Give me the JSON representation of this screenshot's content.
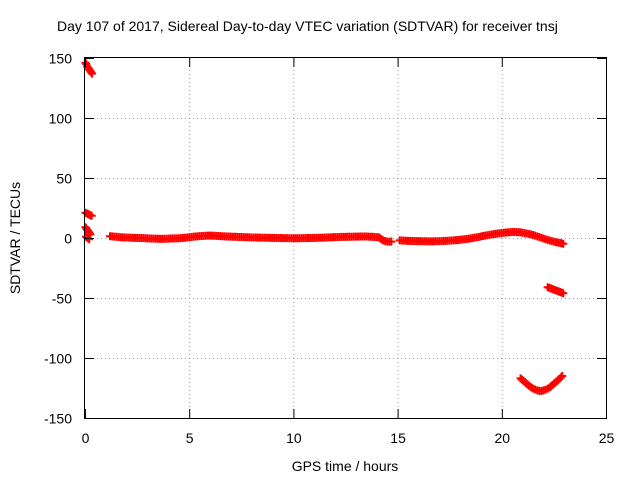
{
  "chart_data": {
    "type": "scatter",
    "title": "Day 107 of 2017, Sidereal Day-to-day VTEC variation (SDTVAR) for receiver tnsj",
    "xlabel": "GPS time / hours",
    "ylabel": "SDTVAR / TECUs",
    "xlim": [
      0,
      25
    ],
    "ylim": [
      -150,
      150
    ],
    "xticks": [
      0,
      5,
      10,
      15,
      20,
      25
    ],
    "yticks": [
      -150,
      -100,
      -50,
      0,
      50,
      100,
      150
    ],
    "xtick_labels": [
      "0",
      "5",
      "10",
      "15",
      "20",
      "25"
    ],
    "ytick_labels": [
      "-150",
      "-100",
      "-50",
      "0",
      "50",
      "100",
      "150"
    ],
    "grid": true,
    "legend": "none",
    "marker": "plus",
    "color": "#ff0000",
    "series": [
      {
        "segments": [
          [
            [
              0.02,
              146
            ],
            [
              0.06,
              145
            ],
            [
              0.1,
              143
            ],
            [
              0.14,
              142
            ],
            [
              0.18,
              141
            ],
            [
              0.22,
              140
            ],
            [
              0.26,
              139
            ],
            [
              0.3,
              138
            ],
            [
              0.34,
              137
            ]
          ],
          [
            [
              0.02,
              21
            ],
            [
              0.08,
              20.5
            ],
            [
              0.14,
              20
            ],
            [
              0.2,
              19.5
            ],
            [
              0.26,
              19
            ],
            [
              0.32,
              18.5
            ]
          ],
          [
            [
              0.02,
              9
            ],
            [
              0.06,
              8
            ],
            [
              0.1,
              7
            ],
            [
              0.14,
              6
            ],
            [
              0.18,
              5
            ],
            [
              0.22,
              4
            ],
            [
              0.26,
              3
            ]
          ],
          [
            [
              0.05,
              1
            ],
            [
              0.12,
              0
            ],
            [
              0.2,
              -1
            ]
          ],
          [
            [
              1.2,
              1.5
            ],
            [
              1.5,
              1
            ],
            [
              1.8,
              0.5
            ],
            [
              2.1,
              0.3
            ],
            [
              2.4,
              0.1
            ],
            [
              2.7,
              0
            ],
            [
              3.0,
              -0.3
            ],
            [
              3.3,
              -0.5
            ],
            [
              3.6,
              -0.7
            ],
            [
              3.9,
              -0.6
            ],
            [
              4.2,
              -0.4
            ],
            [
              4.5,
              -0.2
            ],
            [
              4.8,
              0.2
            ],
            [
              5.1,
              0.8
            ],
            [
              5.4,
              1.4
            ],
            [
              5.7,
              1.8
            ],
            [
              6.0,
              2.0
            ],
            [
              6.3,
              1.8
            ],
            [
              6.6,
              1.5
            ],
            [
              6.9,
              1.2
            ],
            [
              7.2,
              1.0
            ],
            [
              7.5,
              0.8
            ],
            [
              7.8,
              0.6
            ],
            [
              8.1,
              0.4
            ],
            [
              8.4,
              0.3
            ],
            [
              8.7,
              0.2
            ],
            [
              9.0,
              0.1
            ],
            [
              9.3,
              0
            ],
            [
              9.6,
              -0.1
            ],
            [
              9.9,
              -0.2
            ],
            [
              10.2,
              -0.2
            ],
            [
              10.5,
              -0.1
            ],
            [
              10.8,
              0
            ],
            [
              11.1,
              0.1
            ],
            [
              11.4,
              0.3
            ],
            [
              11.7,
              0.5
            ],
            [
              12.0,
              0.7
            ],
            [
              12.3,
              0.9
            ],
            [
              12.6,
              1.0
            ],
            [
              12.9,
              1.1
            ],
            [
              13.2,
              1.2
            ],
            [
              13.5,
              1.2
            ],
            [
              13.8,
              1.0
            ],
            [
              14.1,
              0.6
            ],
            [
              14.3,
              -2
            ],
            [
              14.5,
              -3
            ],
            [
              14.7,
              -3
            ]
          ],
          [
            [
              15.1,
              -2
            ],
            [
              15.4,
              -2.3
            ],
            [
              15.7,
              -2.5
            ],
            [
              16.0,
              -2.6
            ],
            [
              16.3,
              -2.7
            ],
            [
              16.6,
              -2.8
            ],
            [
              16.9,
              -2.7
            ],
            [
              17.2,
              -2.5
            ],
            [
              17.5,
              -2.2
            ],
            [
              17.8,
              -1.8
            ],
            [
              18.1,
              -1.3
            ],
            [
              18.4,
              -0.6
            ],
            [
              18.7,
              0.3
            ],
            [
              19.0,
              1.3
            ],
            [
              19.3,
              2.3
            ],
            [
              19.6,
              3.2
            ],
            [
              19.9,
              4.0
            ],
            [
              20.2,
              4.6
            ],
            [
              20.5,
              5.0
            ],
            [
              20.8,
              4.9
            ],
            [
              21.0,
              4.4
            ],
            [
              21.2,
              3.8
            ],
            [
              21.4,
              3.0
            ],
            [
              21.6,
              2.0
            ],
            [
              21.8,
              0.8
            ],
            [
              22.0,
              -0.4
            ],
            [
              22.2,
              -1.6
            ],
            [
              22.4,
              -2.6
            ],
            [
              22.6,
              -3.5
            ],
            [
              22.8,
              -4.2
            ],
            [
              22.95,
              -4.8
            ]
          ],
          [
            [
              22.2,
              -41
            ],
            [
              22.35,
              -42
            ],
            [
              22.5,
              -43
            ],
            [
              22.65,
              -44
            ],
            [
              22.8,
              -45
            ],
            [
              22.95,
              -46
            ]
          ],
          [
            [
              20.9,
              -117
            ],
            [
              21.1,
              -120
            ],
            [
              21.3,
              -123
            ],
            [
              21.5,
              -125.5
            ],
            [
              21.7,
              -127
            ],
            [
              21.9,
              -127.5
            ],
            [
              22.1,
              -126.5
            ],
            [
              22.3,
              -124.5
            ],
            [
              22.5,
              -121.5
            ],
            [
              22.7,
              -118.5
            ],
            [
              22.9,
              -115
            ]
          ]
        ]
      }
    ]
  }
}
